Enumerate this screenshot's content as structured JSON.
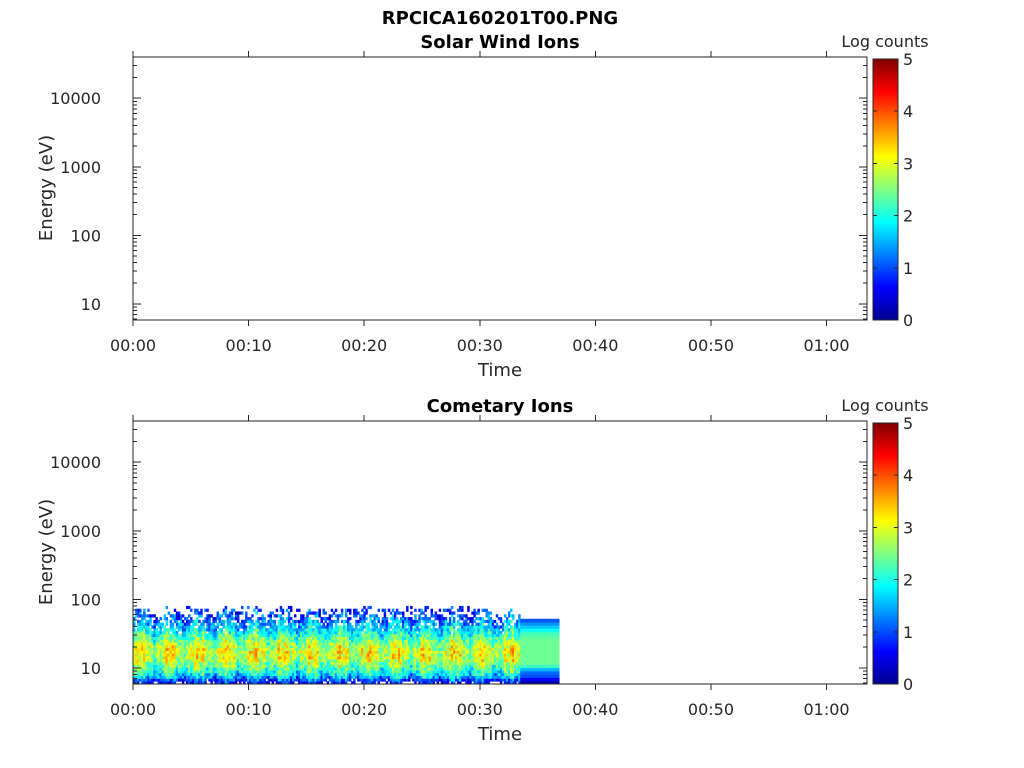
{
  "figure": {
    "title": "RPCICA160201T00.PNG"
  },
  "chart_data": [
    {
      "type": "heatmap",
      "title": "Solar Wind Ions",
      "xlabel": "Time",
      "ylabel": "Energy (eV)",
      "x_ticks": [
        "00:00",
        "00:10",
        "00:20",
        "00:30",
        "00:40",
        "00:50",
        "01:00"
      ],
      "x_tick_minutes": [
        0,
        10,
        20,
        30,
        40,
        50,
        60
      ],
      "xlim_minutes": [
        0,
        63.5
      ],
      "y_scale": "log",
      "y_ticks": [
        "10",
        "100",
        "1000",
        "10000"
      ],
      "y_tick_values": [
        10,
        100,
        1000,
        10000
      ],
      "ylim": [
        5.8,
        40000
      ],
      "colorbar": {
        "label": "Log counts",
        "ticks": [
          "0",
          "1",
          "2",
          "3",
          "4",
          "5"
        ],
        "range": [
          0,
          5
        ],
        "colormap": "jet"
      },
      "data": []
    },
    {
      "type": "heatmap",
      "title": "Cometary Ions",
      "xlabel": "Time",
      "ylabel": "Energy (eV)",
      "x_ticks": [
        "00:00",
        "00:10",
        "00:20",
        "00:30",
        "00:40",
        "00:50",
        "01:00"
      ],
      "x_tick_minutes": [
        0,
        10,
        20,
        30,
        40,
        50,
        60
      ],
      "xlim_minutes": [
        0,
        63.5
      ],
      "y_scale": "log",
      "y_ticks": [
        "10",
        "100",
        "1000",
        "10000"
      ],
      "y_tick_values": [
        10,
        100,
        1000,
        10000
      ],
      "ylim": [
        5.8,
        40000
      ],
      "colorbar": {
        "label": "Log counts",
        "ticks": [
          "0",
          "1",
          "2",
          "3",
          "4",
          "5"
        ],
        "range": [
          0,
          5
        ],
        "colormap": "jet"
      },
      "data_extent": {
        "variable_segment_minutes": [
          0,
          33.5
        ],
        "uniform_segment_minutes": [
          33.5,
          36.9
        ],
        "max_energy_variable_eV": 80,
        "max_energy_uniform_eV": 52
      },
      "energy_profile": [
        {
          "energy_eV": 6.2,
          "log_counts": 0.6
        },
        {
          "energy_eV": 7.5,
          "log_counts": 1.6
        },
        {
          "energy_eV": 9.0,
          "log_counts": 2.1
        },
        {
          "energy_eV": 11,
          "log_counts": 2.5
        },
        {
          "energy_eV": 14,
          "log_counts": 2.9
        },
        {
          "energy_eV": 17,
          "log_counts": 3.0
        },
        {
          "energy_eV": 21,
          "log_counts": 2.8
        },
        {
          "energy_eV": 26,
          "log_counts": 2.4
        },
        {
          "energy_eV": 32,
          "log_counts": 2.0
        },
        {
          "energy_eV": 40,
          "log_counts": 1.6
        },
        {
          "energy_eV": 50,
          "log_counts": 1.2
        },
        {
          "energy_eV": 62,
          "log_counts": 0.9
        },
        {
          "energy_eV": 76,
          "log_counts": 0.7
        }
      ],
      "uniform_segment_profile": [
        {
          "energy_eV": 6.2,
          "log_counts": 0.2
        },
        {
          "energy_eV": 7.5,
          "log_counts": 1.0
        },
        {
          "energy_eV": 9.0,
          "log_counts": 1.2
        },
        {
          "energy_eV": 11,
          "log_counts": 2.4
        },
        {
          "energy_eV": 14,
          "log_counts": 2.4
        },
        {
          "energy_eV": 17,
          "log_counts": 2.4
        },
        {
          "energy_eV": 21,
          "log_counts": 2.4
        },
        {
          "energy_eV": 26,
          "log_counts": 2.4
        },
        {
          "energy_eV": 32,
          "log_counts": 2.2
        },
        {
          "energy_eV": 40,
          "log_counts": 1.6
        },
        {
          "energy_eV": 50,
          "log_counts": 1.0
        }
      ]
    }
  ]
}
